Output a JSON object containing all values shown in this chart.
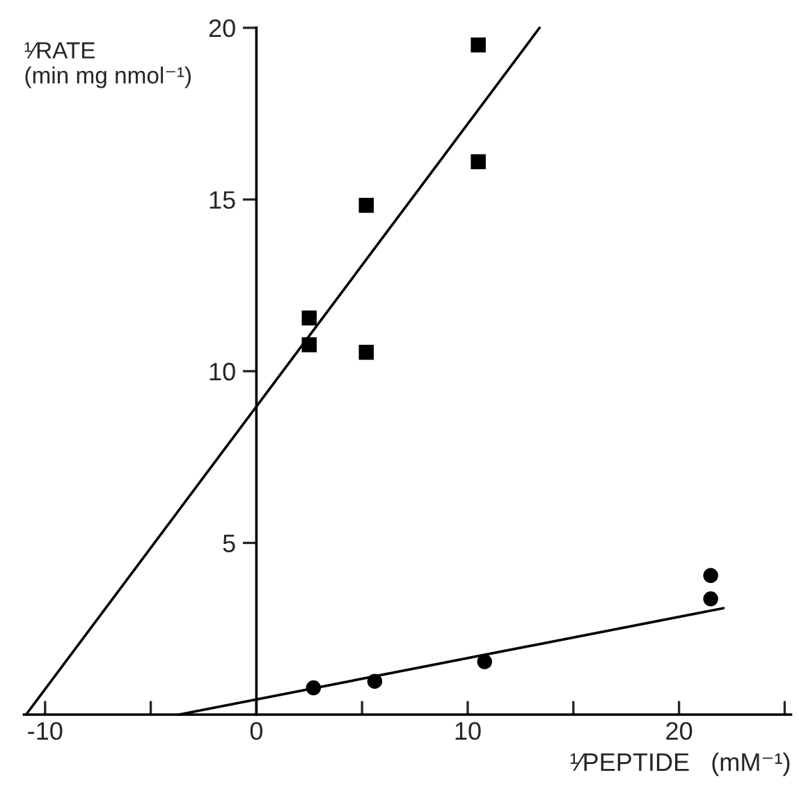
{
  "chart_data": {
    "type": "scatter",
    "xlabel": "¹⁄PEPTIDE   (mM⁻¹)",
    "ylabel": "¹⁄RATE\n(min mg nmol⁻¹)",
    "xlim": [
      -11,
      25.3
    ],
    "ylim": [
      0,
      20
    ],
    "xticks": [
      -10,
      {
        "value": -5,
        "label": null
      },
      0,
      {
        "value": 5,
        "label": null
      },
      10,
      {
        "value": 15,
        "label": null
      },
      20,
      {
        "value": 25,
        "label": null
      }
    ],
    "yticks": [
      5,
      10,
      15,
      20
    ],
    "grid": false,
    "legend": false,
    "series": [
      {
        "marker": "square",
        "color": "#000000",
        "x": [
          2.5,
          2.5,
          5.2,
          5.2,
          10.5,
          10.5
        ],
        "values": [
          11.55,
          10.77,
          14.83,
          10.55,
          19.5,
          16.1
        ]
      },
      {
        "marker": "circle",
        "color": "#000000",
        "x": [
          2.7,
          5.6,
          10.8,
          21.5,
          21.5
        ],
        "values": [
          0.78,
          0.97,
          1.54,
          4.05,
          3.37
        ]
      },
      {
        "type": "line",
        "marker": "none",
        "color": "#000000",
        "x": [
          -10.9,
          13.4
        ],
        "values": [
          0,
          20
        ]
      },
      {
        "type": "line",
        "marker": "none",
        "color": "#000000",
        "x": [
          -3.67,
          22.1
        ],
        "values": [
          0,
          3.1
        ]
      }
    ]
  }
}
